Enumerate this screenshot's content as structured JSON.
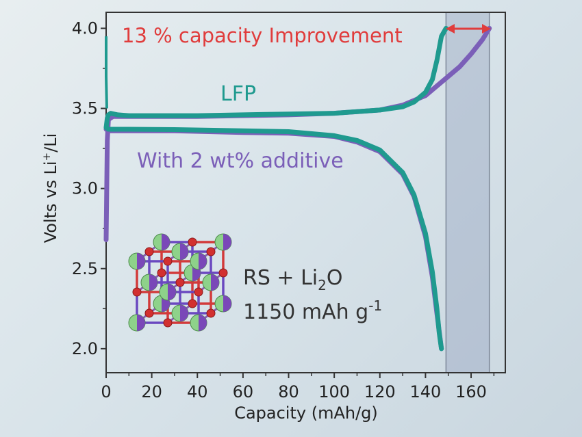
{
  "chart_data": {
    "type": "line",
    "title": "",
    "xlabel": "Capacity (mAh/g)",
    "ylabel_main": "Volts vs Li",
    "ylabel_sup": "+",
    "ylabel_tail": "/Li",
    "xlim": [
      0,
      175
    ],
    "ylim": [
      1.85,
      4.1
    ],
    "xticks": [
      "0",
      "20",
      "40",
      "60",
      "80",
      "100",
      "120",
      "140",
      "160"
    ],
    "yticks": [
      "2.0",
      "2.5",
      "3.0",
      "3.5",
      "4.0"
    ],
    "xtick_values": [
      0,
      20,
      40,
      60,
      80,
      100,
      120,
      140,
      160
    ],
    "ytick_values": [
      2.0,
      2.5,
      3.0,
      3.5,
      4.0
    ],
    "highlight_band": [
      149,
      168
    ],
    "annotations": {
      "improvement": "13 % capacity Improvement",
      "lfp_label": "LFP",
      "additive_label": "With 2 wt% additive",
      "inset_line1_a": "RS  + Li",
      "inset_line1_sub": "2",
      "inset_line1_b": "O",
      "inset_line2_a": "1150 mAh g",
      "inset_line2_sup": "-1"
    },
    "colors": {
      "lfp": "#1f9a8f",
      "additive": "#7b5fb8",
      "annotation": "#e03c3c",
      "band": "#8a98b8"
    },
    "series": [
      {
        "name": "LFP",
        "charge": {
          "x": [
            0,
            0.5,
            1,
            2,
            5,
            10,
            20,
            40,
            60,
            80,
            100,
            110,
            120,
            130,
            135,
            140,
            143,
            145,
            147,
            149
          ],
          "y": [
            3.38,
            3.44,
            3.46,
            3.47,
            3.46,
            3.455,
            3.455,
            3.455,
            3.46,
            3.465,
            3.47,
            3.48,
            3.49,
            3.51,
            3.54,
            3.6,
            3.68,
            3.8,
            3.95,
            4.0
          ]
        },
        "discharge": {
          "x": [
            0,
            1,
            3,
            10,
            30,
            60,
            80,
            100,
            110,
            120,
            130,
            135,
            140,
            143,
            145,
            146,
            147
          ],
          "y": [
            3.38,
            3.37,
            3.37,
            3.37,
            3.368,
            3.36,
            3.355,
            3.33,
            3.3,
            3.24,
            3.1,
            2.96,
            2.72,
            2.48,
            2.25,
            2.1,
            2.0
          ]
        }
      },
      {
        "name": "With 2 wt% additive",
        "charge": {
          "x": [
            0,
            0.5,
            1,
            3,
            10,
            40,
            80,
            100,
            120,
            130,
            140,
            145,
            150,
            155,
            160,
            165,
            168
          ],
          "y": [
            2.68,
            3.3,
            3.43,
            3.45,
            3.45,
            3.45,
            3.46,
            3.47,
            3.49,
            3.52,
            3.58,
            3.64,
            3.7,
            3.76,
            3.84,
            3.93,
            4.0
          ]
        },
        "discharge": {
          "x": [
            0,
            1,
            3,
            10,
            30,
            60,
            80,
            100,
            110,
            120,
            130,
            135,
            140,
            143,
            145,
            147
          ],
          "y": [
            3.37,
            3.36,
            3.36,
            3.36,
            3.36,
            3.35,
            3.345,
            3.325,
            3.29,
            3.23,
            3.09,
            2.95,
            2.7,
            2.45,
            2.22,
            2.0
          ]
        }
      }
    ],
    "lfp_initial_spike": {
      "x": [
        0,
        0,
        0.3
      ],
      "y": [
        3.95,
        3.7,
        3.5
      ]
    }
  }
}
